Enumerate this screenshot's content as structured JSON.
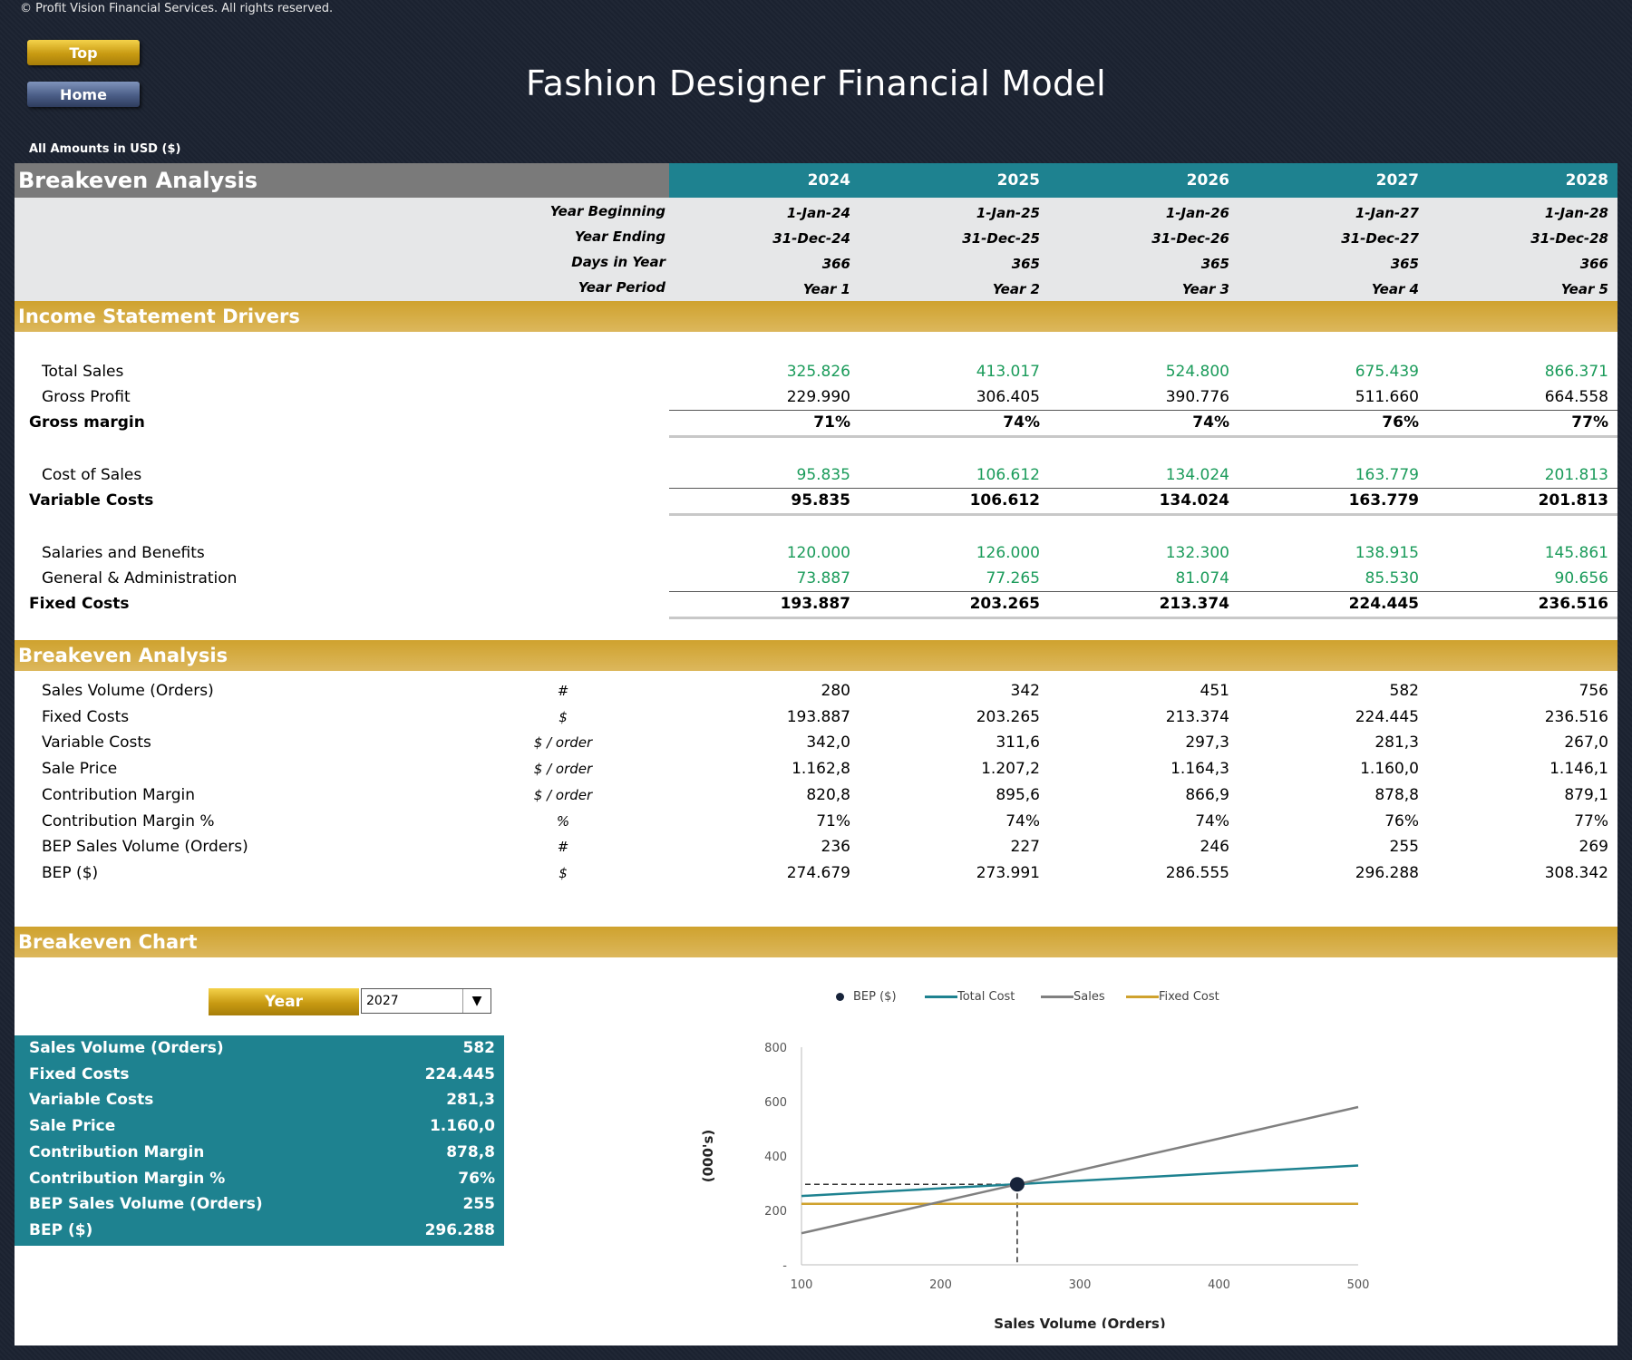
{
  "copyright": "© Profit Vision Financial Services. All rights reserved.",
  "nav": {
    "top_label": "Top",
    "home_label": "Home"
  },
  "page_title": "Fashion Designer Financial Model",
  "amounts_note": "All Amounts in  USD ($)",
  "header": {
    "section_title": "Breakeven Analysis",
    "years": [
      "2024",
      "2025",
      "2026",
      "2027",
      "2028"
    ]
  },
  "period_info": {
    "labels": [
      "Year Beginning",
      "Year Ending",
      "Days in Year",
      "Year Period"
    ],
    "year_beginning": [
      "1-Jan-24",
      "1-Jan-25",
      "1-Jan-26",
      "1-Jan-27",
      "1-Jan-28"
    ],
    "year_ending": [
      "31-Dec-24",
      "31-Dec-25",
      "31-Dec-26",
      "31-Dec-27",
      "31-Dec-28"
    ],
    "days": [
      "366",
      "365",
      "365",
      "365",
      "366"
    ],
    "period": [
      "Year 1",
      "Year 2",
      "Year 3",
      "Year 4",
      "Year 5"
    ]
  },
  "income_drivers": {
    "title": "Income Statement Drivers",
    "total_sales": {
      "label": "Total Sales",
      "values": [
        "325.826",
        "413.017",
        "524.800",
        "675.439",
        "866.371"
      ]
    },
    "gross_profit": {
      "label": "Gross Profit",
      "values": [
        "229.990",
        "306.405",
        "390.776",
        "511.660",
        "664.558"
      ]
    },
    "gross_margin": {
      "label": "Gross margin",
      "values": [
        "71%",
        "74%",
        "74%",
        "76%",
        "77%"
      ]
    },
    "cost_of_sales": {
      "label": "Cost of Sales",
      "values": [
        "95.835",
        "106.612",
        "134.024",
        "163.779",
        "201.813"
      ]
    },
    "variable_costs": {
      "label": "Variable Costs",
      "values": [
        "95.835",
        "106.612",
        "134.024",
        "163.779",
        "201.813"
      ]
    },
    "salaries": {
      "label": "Salaries and Benefits",
      "values": [
        "120.000",
        "126.000",
        "132.300",
        "138.915",
        "145.861"
      ]
    },
    "gna": {
      "label": "General & Administration",
      "values": [
        "73.887",
        "77.265",
        "81.074",
        "85.530",
        "90.656"
      ]
    },
    "fixed_costs": {
      "label": "Fixed Costs",
      "values": [
        "193.887",
        "203.265",
        "213.374",
        "224.445",
        "236.516"
      ]
    }
  },
  "breakeven": {
    "title": "Breakeven Analysis",
    "rows": [
      {
        "label": "Sales Volume (Orders)",
        "unit": "#",
        "values": [
          "280",
          "342",
          "451",
          "582",
          "756"
        ]
      },
      {
        "label": "Fixed Costs",
        "unit": "$",
        "values": [
          "193.887",
          "203.265",
          "213.374",
          "224.445",
          "236.516"
        ]
      },
      {
        "label": "Variable Costs",
        "unit": "$ / order",
        "values": [
          "342,0",
          "311,6",
          "297,3",
          "281,3",
          "267,0"
        ]
      },
      {
        "label": "Sale Price",
        "unit": "$ / order",
        "values": [
          "1.162,8",
          "1.207,2",
          "1.164,3",
          "1.160,0",
          "1.146,1"
        ]
      },
      {
        "label": "Contribution Margin",
        "unit": "$ / order",
        "values": [
          "820,8",
          "895,6",
          "866,9",
          "878,8",
          "879,1"
        ]
      },
      {
        "label": "Contribution Margin %",
        "unit": "%",
        "values": [
          "71%",
          "74%",
          "74%",
          "76%",
          "77%"
        ]
      },
      {
        "label": "BEP Sales Volume (Orders)",
        "unit": "#",
        "values": [
          "236",
          "227",
          "246",
          "255",
          "269"
        ]
      },
      {
        "label": "BEP ($)",
        "unit": "$",
        "values": [
          "274.679",
          "273.991",
          "286.555",
          "296.288",
          "308.342"
        ]
      }
    ]
  },
  "breakeven_chart_section": {
    "title": "Breakeven Chart",
    "year_button_label": "Year",
    "year_selected": "2027",
    "summary": [
      {
        "label": "Sales Volume (Orders)",
        "value": "582"
      },
      {
        "label": "Fixed Costs",
        "value": "224.445"
      },
      {
        "label": "Variable Costs",
        "value": "281,3"
      },
      {
        "label": "Sale Price",
        "value": "1.160,0"
      },
      {
        "label": "Contribution Margin",
        "value": "878,8"
      },
      {
        "label": "Contribution Margin %",
        "value": "76%"
      },
      {
        "label": "BEP Sales Volume (Orders)",
        "value": "255"
      },
      {
        "label": "BEP ($)",
        "value": "296.288"
      }
    ]
  },
  "chart_data": {
    "type": "line",
    "xlabel": "Sales Volume (Orders)",
    "ylabel": "(000's)",
    "xlim": [
      100,
      500
    ],
    "ylim": [
      0,
      800
    ],
    "x_ticks": [
      "100",
      "200",
      "300",
      "400",
      "500"
    ],
    "y_ticks": [
      "-",
      "200",
      "400",
      "600",
      "800"
    ],
    "legend_position": "top",
    "series": [
      {
        "name": "Total Cost",
        "color": "#1e8290",
        "points": [
          [
            100,
            253
          ],
          [
            500,
            365
          ]
        ]
      },
      {
        "name": "Sales",
        "color": "#808080",
        "points": [
          [
            100,
            116
          ],
          [
            500,
            580
          ]
        ]
      },
      {
        "name": "Fixed Cost",
        "color": "#cfa22e",
        "points": [
          [
            100,
            224
          ],
          [
            500,
            224
          ]
        ]
      }
    ],
    "bep": {
      "name": "BEP ($)",
      "x": 255,
      "y": 296,
      "color": "#17233a"
    }
  }
}
